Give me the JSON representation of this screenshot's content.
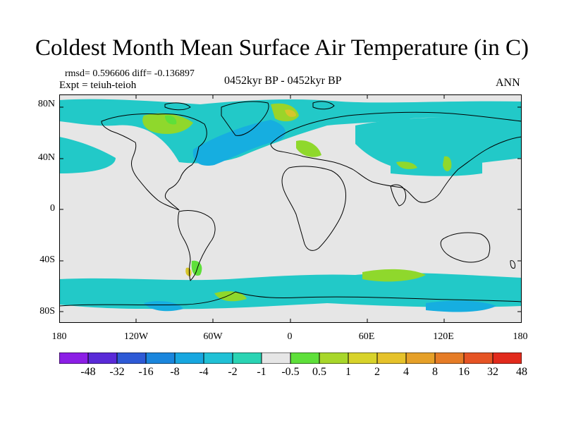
{
  "title": "Coldest Month Mean Surface Air Temperature (in C)",
  "stats_line": "rmsd= 0.596606 diff= -0.136897",
  "experiment_line": "Expt = teiuh-teioh",
  "period": "0452kyr BP - 0452kyr BP",
  "season": "ANN",
  "lat_labels": [
    "80N",
    "40N",
    "0",
    "40S",
    "80S"
  ],
  "lon_labels": [
    "180",
    "120W",
    "60W",
    "0",
    "60E",
    "120E",
    "180"
  ],
  "colorbar": {
    "colors": [
      "#8c1ee6",
      "#5a2ad8",
      "#2e5ad6",
      "#1a86dd",
      "#17a7e0",
      "#20c1d6",
      "#2ad4b4",
      "#e6e6e6",
      "#5ee03a",
      "#a8d72a",
      "#d8d32a",
      "#e6c22a",
      "#e6a028",
      "#e67c26",
      "#e65424",
      "#e22a1c"
    ],
    "labels": [
      "-48",
      "-32",
      "-16",
      "-8",
      "-4",
      "-2",
      "-1",
      "-0.5",
      "0.5",
      "1",
      "2",
      "4",
      "8",
      "16",
      "32",
      "48"
    ]
  }
}
